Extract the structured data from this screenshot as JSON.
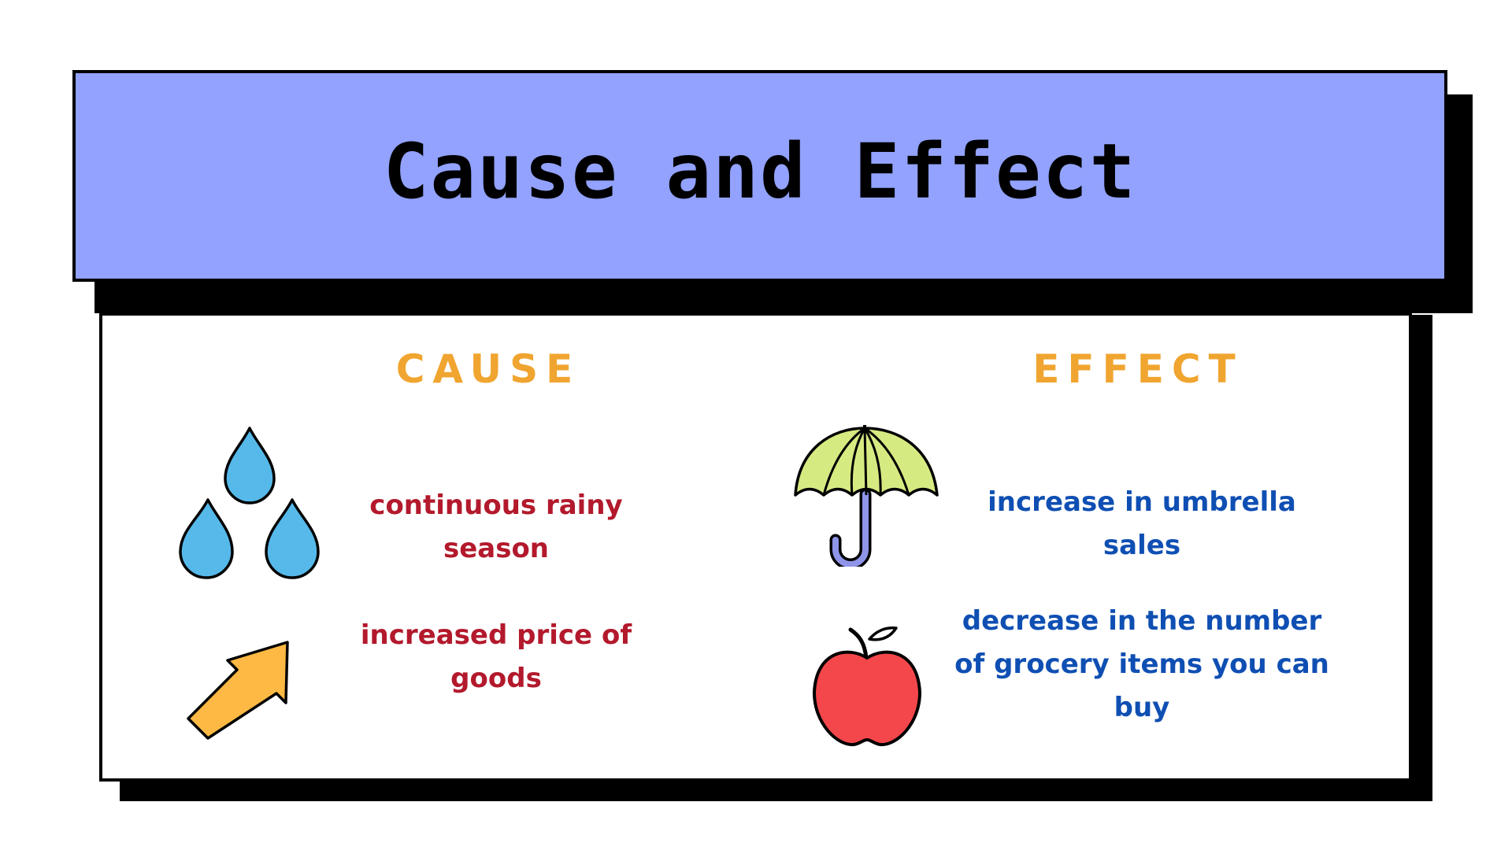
{
  "title": "Cause and Effect",
  "columns": {
    "cause_heading": "CAUSE",
    "effect_heading": "EFFECT"
  },
  "causes": [
    {
      "text": "continuous rainy season",
      "icon": "raindrops-icon"
    },
    {
      "text": "increased price of goods",
      "icon": "up-arrow-icon"
    }
  ],
  "effects": [
    {
      "text": "increase in umbrella sales",
      "icon": "umbrella-icon"
    },
    {
      "text": "decrease in the number of grocery items you can buy",
      "icon": "apple-icon"
    }
  ],
  "colors": {
    "title_banner": "#92a2fe",
    "heading": "#f0a530",
    "cause_text": "#b3192c",
    "effect_text": "#0f4fb3",
    "raindrop": "#56b9ea",
    "arrow": "#fdb944",
    "umbrella_canopy": "#d6ea82",
    "umbrella_handle": "#8f95e8",
    "apple": "#f4474b"
  }
}
